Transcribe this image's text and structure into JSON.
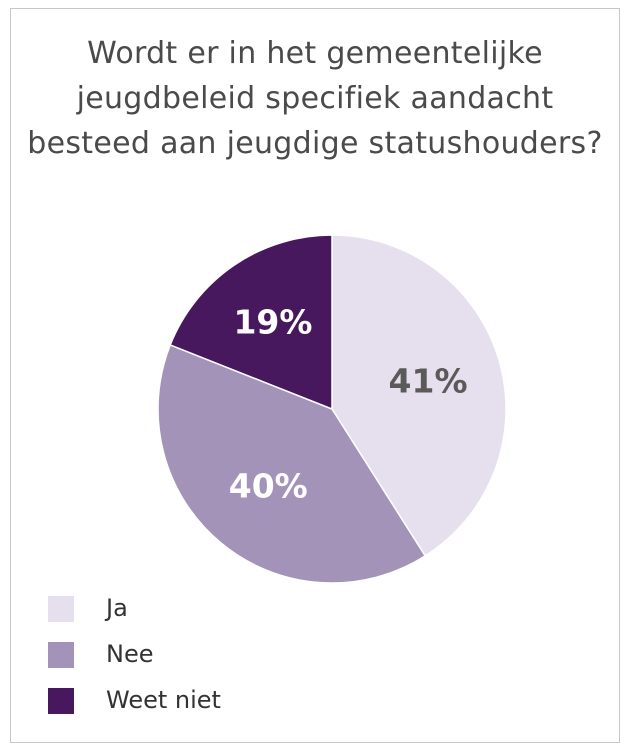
{
  "chart_data": {
    "type": "pie",
    "title": "Wordt er in het gemeentelijke jeugdbeleid specifiek aandacht besteed aan jeugdige statushouders?",
    "categories": [
      "Ja",
      "Nee",
      "Weet niet"
    ],
    "values": [
      41,
      40,
      19
    ],
    "labels": [
      "41%",
      "40%",
      "19%"
    ],
    "colors": [
      "#e6e0ee",
      "#a393b8",
      "#48185f"
    ],
    "label_colors": [
      "#5a5a5a",
      "#ffffff",
      "#ffffff"
    ],
    "legend": "bottom-left"
  }
}
